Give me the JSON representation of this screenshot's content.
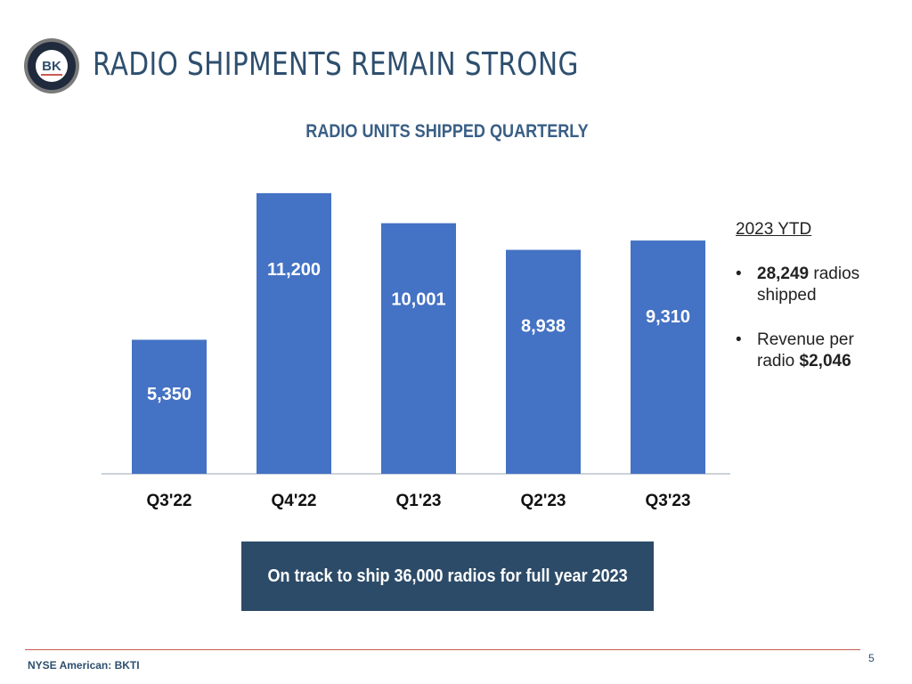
{
  "slide": {
    "title": "RADIO SHIPMENTS REMAIN STRONG",
    "logo_text": "BK",
    "footer": "NYSE American: BKTI",
    "page_number": "5"
  },
  "chart_data": {
    "type": "bar",
    "title": "RADIO UNITS SHIPPED QUARTERLY",
    "categories": [
      "Q3'22",
      "Q4'22",
      "Q1'23",
      "Q2'23",
      "Q3'23"
    ],
    "values": [
      5350,
      11200,
      10001,
      8938,
      9310
    ],
    "value_labels": [
      "5,350",
      "11,200",
      "10,001",
      "8,938",
      "9,310"
    ],
    "ylim": [
      0,
      11800
    ],
    "grid": false,
    "bar_color": "#4472c4"
  },
  "sidebar": {
    "heading": "2023 YTD",
    "item1_value": "28,249",
    "item1_text": " radios shipped",
    "item2_text": "Revenue per radio ",
    "item2_value": "$2,046"
  },
  "banner": {
    "text": "On track to ship 36,000 radios for full year 2023"
  },
  "colors": {
    "title": "#2e4f6e",
    "chart_title": "#3a5f86",
    "banner_bg": "#2c4b68",
    "footer_rule": "#c95a54"
  }
}
